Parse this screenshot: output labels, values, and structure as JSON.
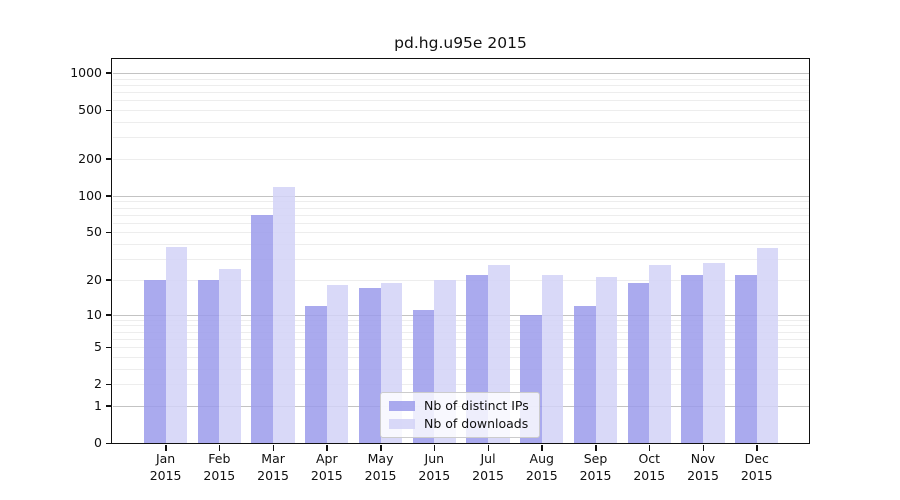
{
  "title": "pd.hg.u95e 2015",
  "chart_data": {
    "type": "bar",
    "title": "pd.hg.u95e 2015",
    "categories": [
      "Jan 2015",
      "Feb 2015",
      "Mar 2015",
      "Apr 2015",
      "May 2015",
      "Jun 2015",
      "Jul 2015",
      "Aug 2015",
      "Sep 2015",
      "Oct 2015",
      "Nov 2015",
      "Dec 2015"
    ],
    "series": [
      {
        "name": "Nb of distinct IPs",
        "color": "#9b9beb",
        "values": [
          20,
          20,
          70,
          12,
          17,
          11,
          22,
          10,
          12,
          19,
          22,
          22
        ]
      },
      {
        "name": "Nb of downloads",
        "color": "#d2d2f7",
        "values": [
          38,
          25,
          118,
          18,
          19,
          20,
          27,
          22,
          21,
          27,
          28,
          37
        ]
      }
    ],
    "xlabel": "",
    "ylabel": "",
    "yscale": "log10(value+1)",
    "ylim": [
      0,
      1275
    ],
    "y_ticks": [
      1000,
      500,
      200,
      100,
      50,
      20,
      10,
      5,
      2,
      1,
      0
    ],
    "grid": true,
    "legend_position": "bottom-center-inside"
  }
}
